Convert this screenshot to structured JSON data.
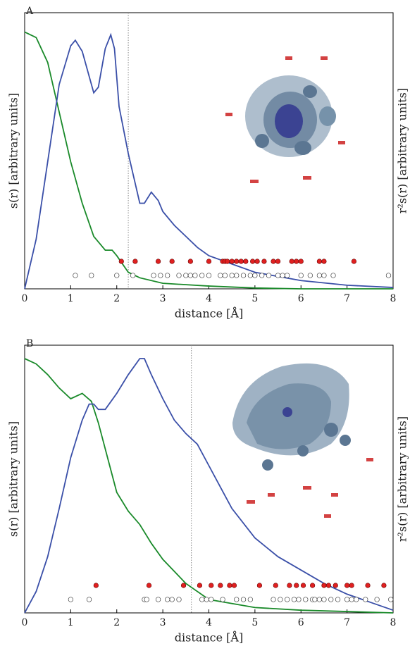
{
  "chart_data": [
    {
      "type": "line",
      "panel": "A",
      "xlabel": "distance [Å]",
      "ylabel": "s(r) [arbitrary units]",
      "y2label": "r²s(r) [arbitrary units]",
      "xlim": [
        0,
        8
      ],
      "xticks": [
        0,
        1,
        2,
        3,
        4,
        5,
        6,
        7,
        8
      ],
      "ylim": [
        0,
        100
      ],
      "y2lim": [
        0,
        100
      ],
      "vline": 2.25,
      "series": [
        {
          "color": "#1a8a2a",
          "axis": "y",
          "x": [
            0,
            0.25,
            0.5,
            0.75,
            1,
            1.25,
            1.5,
            1.75,
            1.9,
            2,
            2.25,
            2.5,
            3,
            4,
            5,
            6,
            8
          ],
          "values": [
            93,
            91,
            82,
            64,
            46,
            31,
            19,
            14,
            14,
            12,
            6,
            4,
            2,
            1,
            0.3,
            0,
            0
          ]
        },
        {
          "color": "#3a4fa8",
          "axis": "y2",
          "x": [
            0,
            0.25,
            0.5,
            0.75,
            1,
            1.1,
            1.25,
            1.5,
            1.6,
            1.75,
            1.87,
            1.95,
            2.05,
            2.25,
            2.5,
            2.6,
            2.75,
            2.9,
            3,
            3.25,
            3.5,
            3.75,
            4,
            4.5,
            5,
            6,
            7,
            8
          ],
          "values": [
            0,
            18,
            46,
            74,
            88,
            90,
            86,
            71,
            73,
            87,
            92,
            87,
            66,
            49,
            31,
            31,
            35,
            32,
            28,
            23,
            19,
            15,
            12,
            9,
            6,
            3,
            1.3,
            0.5
          ]
        }
      ],
      "red_points": [
        2.1,
        2.4,
        2.9,
        3.2,
        3.6,
        4.0,
        4.3,
        4.35,
        4.4,
        4.5,
        4.6,
        4.7,
        4.8,
        4.95,
        5.05,
        5.2,
        5.4,
        5.5,
        5.8,
        5.9,
        6.0,
        6.4,
        6.5,
        7.15
      ],
      "open_points": [
        1.1,
        1.45,
        2.0,
        2.35,
        2.8,
        2.95,
        3.1,
        3.35,
        3.5,
        3.6,
        3.7,
        3.85,
        4.0,
        4.25,
        4.35,
        4.5,
        4.6,
        4.75,
        4.9,
        5.0,
        5.15,
        5.3,
        5.5,
        5.6,
        5.7,
        6.0,
        6.2,
        6.4,
        6.5,
        6.7,
        7.9
      ]
    },
    {
      "type": "line",
      "panel": "B",
      "xlabel": "distance [Å]",
      "ylabel": "s(r) [arbitrary units]",
      "y2label": "r²s(r) [arbitrary units]",
      "xlim": [
        0,
        8
      ],
      "xticks": [
        0,
        1,
        2,
        3,
        4,
        5,
        6,
        7,
        8
      ],
      "ylim": [
        0,
        100
      ],
      "y2lim": [
        0,
        100
      ],
      "vline": 3.62,
      "series": [
        {
          "color": "#1a8a2a",
          "axis": "y",
          "x": [
            0,
            0.25,
            0.5,
            0.75,
            1,
            1.25,
            1.45,
            1.6,
            1.8,
            2,
            2.25,
            2.5,
            2.75,
            3,
            3.5,
            4,
            5,
            6,
            8
          ],
          "values": [
            95,
            93,
            89,
            84,
            80,
            82,
            79,
            71,
            58,
            45,
            38,
            33,
            26,
            20,
            11,
            5,
            2,
            1,
            0
          ]
        },
        {
          "color": "#3a4fa8",
          "axis": "y2",
          "x": [
            0,
            0.25,
            0.5,
            0.75,
            1,
            1.25,
            1.4,
            1.5,
            1.6,
            1.75,
            2,
            2.25,
            2.5,
            2.6,
            2.75,
            3,
            3.25,
            3.5,
            3.75,
            4,
            4.25,
            4.5,
            5,
            5.5,
            6,
            6.5,
            7,
            7.5,
            8
          ],
          "values": [
            0,
            8,
            21,
            39,
            58,
            72,
            78,
            78,
            76,
            76,
            82,
            89,
            95,
            95,
            89,
            80,
            72,
            67,
            63,
            55,
            47,
            39,
            28,
            21,
            16,
            11,
            7,
            4,
            1
          ]
        }
      ],
      "red_points": [
        1.55,
        2.7,
        3.45,
        3.8,
        4.05,
        4.25,
        4.45,
        4.55,
        5.1,
        5.45,
        5.75,
        5.9,
        6.05,
        6.25,
        6.5,
        6.6,
        6.75,
        7.0,
        7.1,
        7.45,
        7.8
      ],
      "open_points": [
        1.0,
        1.4,
        2.6,
        2.65,
        2.9,
        3.1,
        3.2,
        3.35,
        3.85,
        3.95,
        4.05,
        4.3,
        4.6,
        4.75,
        4.9,
        5.4,
        5.55,
        5.7,
        5.85,
        5.95,
        6.1,
        6.25,
        6.3,
        6.4,
        6.5,
        6.65,
        6.8,
        7.0,
        7.1,
        7.2,
        7.4,
        7.65,
        7.95
      ]
    }
  ]
}
